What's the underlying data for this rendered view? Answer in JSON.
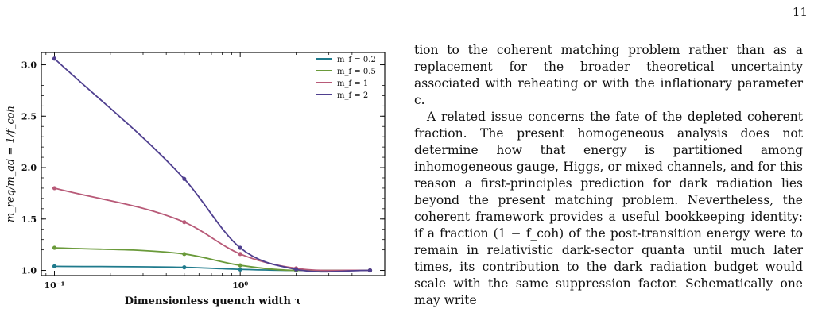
{
  "page": {
    "number": "11"
  },
  "figure": {
    "chart_data": {
      "type": "line",
      "xlabel": "Dimensionless quench width τ",
      "ylabel": "m_req/m_ad = 1/f_coh",
      "xscale": "log",
      "xlim": [
        0.085,
        6.0
      ],
      "ylim": [
        0.95,
        3.12
      ],
      "xticks": [
        {
          "value": 0.1,
          "label": "10⁻¹"
        },
        {
          "value": 1,
          "label": "10⁰"
        }
      ],
      "yticks": [
        {
          "value": 1.0,
          "label": "1.0"
        },
        {
          "value": 1.5,
          "label": "1.5"
        },
        {
          "value": 2.0,
          "label": "2.0"
        },
        {
          "value": 2.5,
          "label": "2.5"
        },
        {
          "value": 3.0,
          "label": "3.0"
        }
      ],
      "x": [
        0.1,
        0.5,
        1.0,
        2.0,
        5.0
      ],
      "series": [
        {
          "name": "m_f = 0.2",
          "color": "#1f7a8c",
          "values": [
            1.04,
            1.03,
            1.01,
            1.0,
            1.0
          ]
        },
        {
          "name": "m_f = 0.5",
          "color": "#6a9a3a",
          "values": [
            1.22,
            1.16,
            1.05,
            1.0,
            1.0
          ]
        },
        {
          "name": "m_f = 1",
          "color": "#b85a78",
          "values": [
            1.8,
            1.47,
            1.16,
            1.02,
            1.0
          ]
        },
        {
          "name": "m_f = 2",
          "color": "#4f3f8f",
          "values": [
            3.06,
            1.89,
            1.22,
            1.01,
            1.0
          ]
        }
      ],
      "legend": "top-right",
      "grid": false
    }
  },
  "text": {
    "para1": "tion to the coherent matching problem rather than as a replacement for the broader theoretical uncertainty associated with reheating or with the inflationary parameter c.",
    "para2": "A related issue concerns the fate of the depleted coherent fraction. The present homogeneous analysis does not determine how that energy is partitioned among inhomogeneous gauge, Higgs, or mixed channels, and for this reason a first-principles prediction for dark radiation lies beyond the present matching problem. Nevertheless, the coherent framework provides a useful bookkeeping identity: if a fraction (1 − f_coh) of the post-transition energy were to remain in relativistic dark-sector quanta until much later times, its contribution to the dark radiation budget would scale with the same suppression factor. Schematically one may write"
  }
}
